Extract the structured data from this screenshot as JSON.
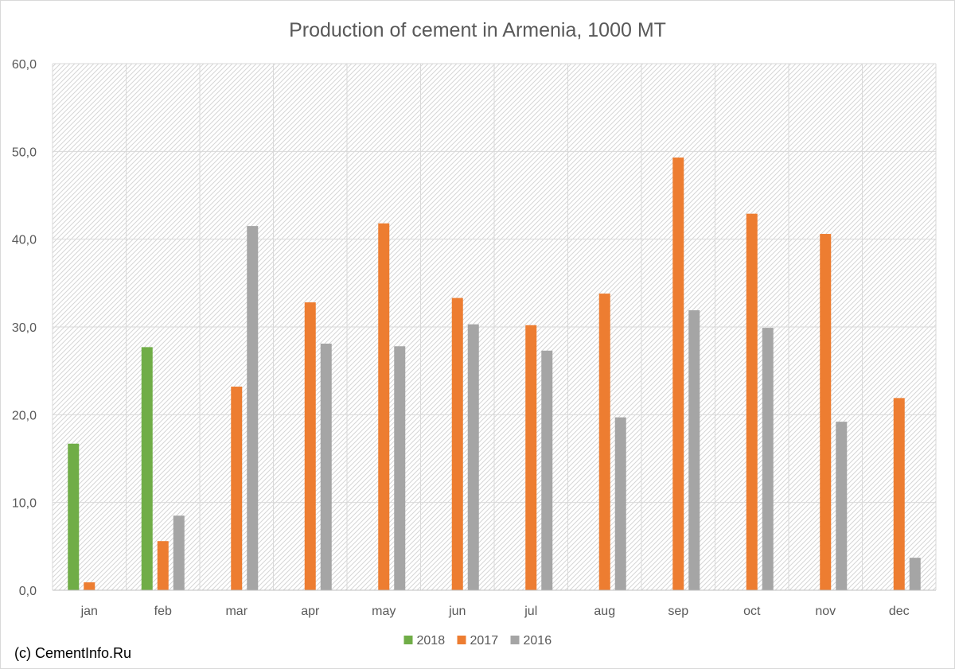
{
  "chart_data": {
    "type": "bar",
    "title": "Production of cement in Armenia, 1000 MT",
    "xlabel": "",
    "ylabel": "",
    "categories": [
      "jan",
      "feb",
      "mar",
      "apr",
      "may",
      "jun",
      "jul",
      "aug",
      "sep",
      "oct",
      "nov",
      "dec"
    ],
    "ylim": [
      0,
      60
    ],
    "yticks": [
      0,
      10,
      20,
      30,
      40,
      50,
      60
    ],
    "ytick_labels": [
      "0,0",
      "10,0",
      "20,0",
      "30,0",
      "40,0",
      "50,0",
      "60,0"
    ],
    "grid": true,
    "legend_position": "bottom",
    "series": [
      {
        "name": "2018",
        "color": "#70ad47",
        "values": [
          16.7,
          27.7,
          null,
          null,
          null,
          null,
          null,
          null,
          null,
          null,
          null,
          null
        ]
      },
      {
        "name": "2017",
        "color": "#ed7d31",
        "values": [
          0.9,
          5.6,
          23.2,
          32.8,
          41.8,
          33.3,
          30.2,
          33.8,
          49.3,
          42.9,
          40.6,
          21.9
        ]
      },
      {
        "name": "2016",
        "color": "#a5a5a5",
        "values": [
          null,
          8.5,
          41.5,
          28.1,
          27.8,
          30.3,
          27.3,
          19.7,
          31.9,
          29.9,
          19.2,
          3.7
        ]
      }
    ]
  },
  "credit": "(c) CementInfo.Ru"
}
